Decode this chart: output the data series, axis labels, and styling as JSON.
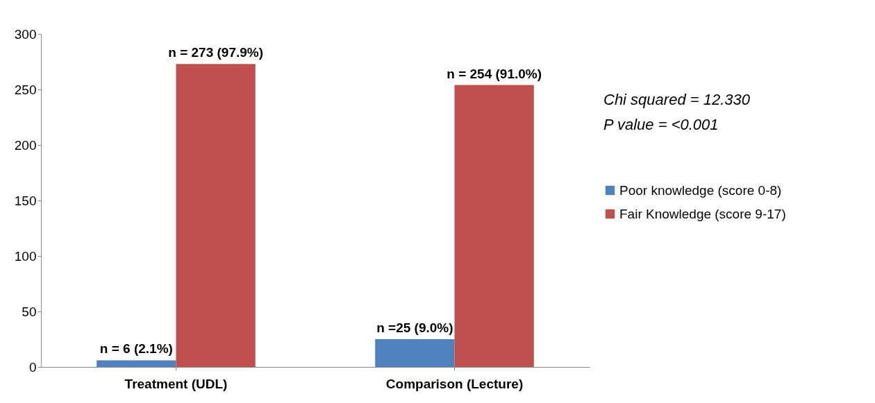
{
  "chart_data": {
    "type": "bar",
    "categories": [
      "Treatment (UDL)",
      "Comparison (Lecture)"
    ],
    "series": [
      {
        "name": "Poor knowledge (score 0-8)",
        "color": "#4f81bd",
        "values": [
          6,
          25
        ],
        "value_labels": [
          "n = 6 (2.1%)",
          "n =25 (9.0%)"
        ]
      },
      {
        "name": "Fair Knowledge (score 9-17)",
        "color": "#c0504d",
        "values": [
          273,
          254
        ],
        "value_labels": [
          "n = 273 (97.9%)",
          "n = 254 (91.0%)"
        ]
      }
    ],
    "ylim": [
      0,
      300
    ],
    "yticks": [
      0,
      50,
      100,
      150,
      200,
      250,
      300
    ],
    "grid": false,
    "legend": "right",
    "annotations": [
      "Chi squared = 12.330",
      "P value = <0.001"
    ]
  }
}
